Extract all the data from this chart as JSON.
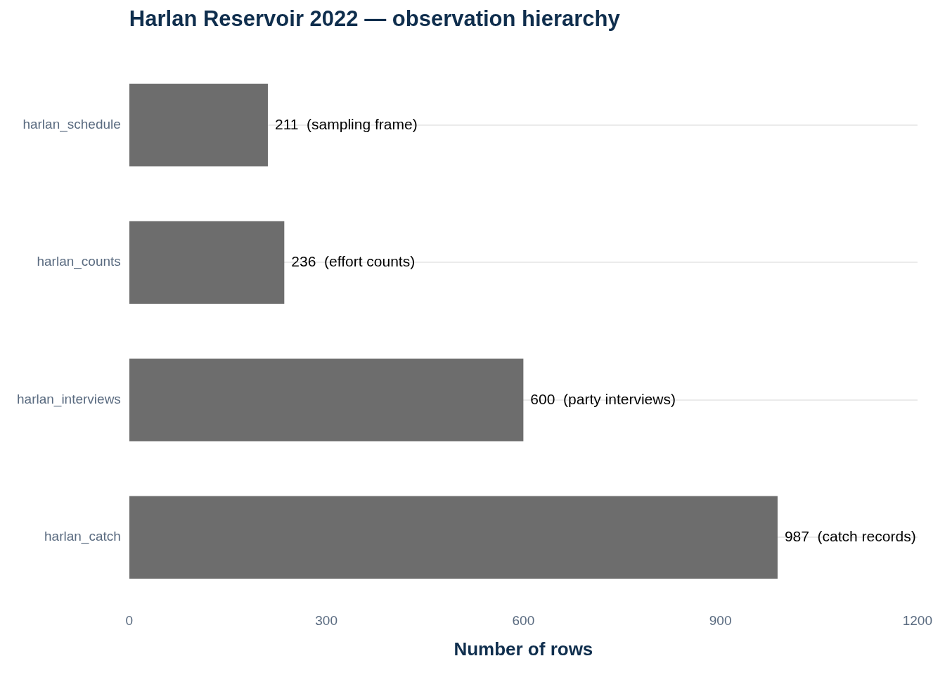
{
  "chart_data": {
    "type": "bar",
    "orientation": "horizontal",
    "title": "Harlan Reservoir 2022 — observation hierarchy",
    "xlabel": "Number of rows",
    "categories": [
      "harlan_schedule",
      "harlan_counts",
      "harlan_interviews",
      "harlan_catch"
    ],
    "values": [
      211,
      236,
      600,
      987
    ],
    "color": "#6d6d6d",
    "value_labels": [
      "211  (sampling frame)",
      "236  (effort counts)",
      "600  (party interviews)",
      "987  (catch records)"
    ],
    "xlim": [
      0,
      1200
    ],
    "xticks": [
      0,
      300,
      600,
      900,
      1200
    ],
    "grid": "y",
    "legend": false
  }
}
